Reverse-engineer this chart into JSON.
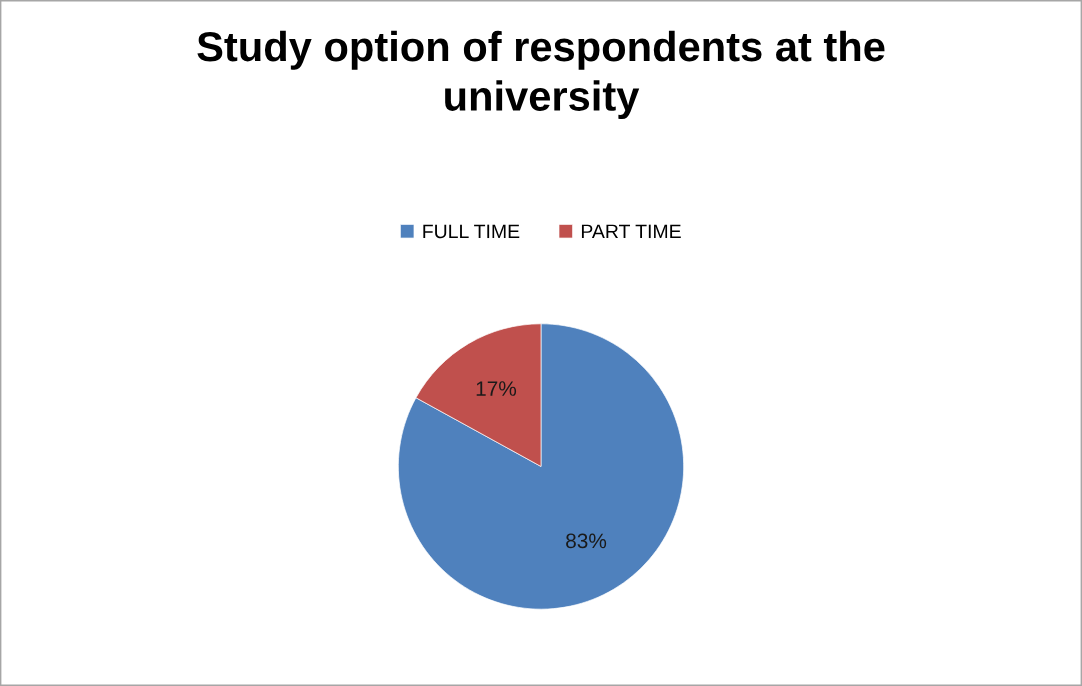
{
  "chart_data": {
    "type": "pie",
    "title": "Study option of respondents at the\nuniversity",
    "categories": [
      "FULL TIME",
      "PART TIME"
    ],
    "values": [
      83,
      17
    ],
    "colors": [
      "#4f81bd",
      "#c0504d"
    ],
    "value_labels": [
      "83%",
      "17%"
    ],
    "legend": "top"
  }
}
